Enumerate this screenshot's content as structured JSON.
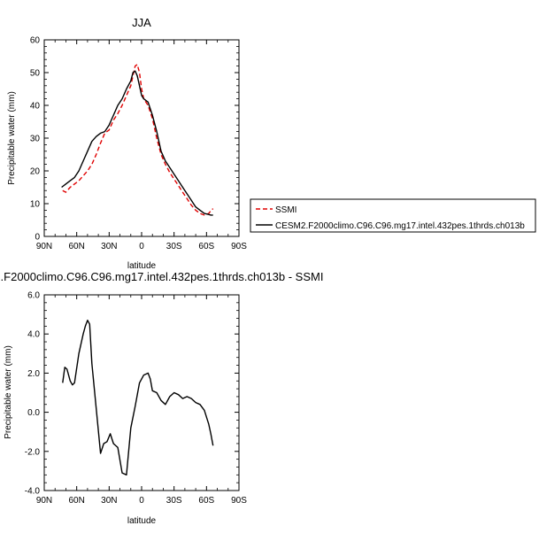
{
  "chart_data": [
    {
      "type": "line",
      "title": "JJA",
      "xlabel": "latitude",
      "ylabel": "Precipitable water (mm)",
      "xlim": [
        90,
        -90
      ],
      "ylim": [
        0,
        60
      ],
      "x_ticks": [
        90,
        60,
        30,
        0,
        -30,
        -60,
        -90
      ],
      "x_tick_labels": [
        "90N",
        "60N",
        "30N",
        "0",
        "30S",
        "60S",
        "90S"
      ],
      "y_ticks": [
        0,
        10,
        20,
        30,
        40,
        50,
        60
      ],
      "y_tick_labels": [
        "0",
        "10",
        "20",
        "30",
        "40",
        "50",
        "60"
      ],
      "legend_position": "right",
      "series": [
        {
          "name": "SSMI",
          "color": "#e00000",
          "dash": "dashed",
          "x": [
            73,
            70,
            66,
            62,
            58,
            54,
            50,
            46,
            42,
            38,
            34,
            30,
            26,
            22,
            18,
            14,
            10,
            8,
            6,
            4,
            2,
            0,
            -2,
            -6,
            -10,
            -14,
            -18,
            -22,
            -26,
            -30,
            -34,
            -38,
            -42,
            -46,
            -50,
            -54,
            -58,
            -62,
            -64,
            -66
          ],
          "y": [
            14,
            13.5,
            15,
            16,
            17,
            18.5,
            20,
            22,
            25,
            28.5,
            31.5,
            32.5,
            35.5,
            37.5,
            40,
            43,
            46,
            49,
            52,
            52.5,
            50,
            45,
            42,
            40,
            36,
            30,
            25,
            22,
            19.5,
            17.5,
            15.5,
            13.5,
            11.5,
            9.5,
            8,
            7,
            6.5,
            7,
            7.8,
            8.5
          ]
        },
        {
          "name": "CESM2.F2000climo.C96.C96.mg17.intel.432pes.1thrds.ch013b",
          "color": "#000000",
          "dash": "solid",
          "x": [
            74,
            70,
            66,
            62,
            58,
            54,
            50,
            46,
            42,
            38,
            34,
            30,
            26,
            22,
            18,
            14,
            10,
            8,
            6,
            4,
            2,
            0,
            -2,
            -6,
            -10,
            -14,
            -18,
            -22,
            -26,
            -30,
            -34,
            -38,
            -42,
            -46,
            -50,
            -54,
            -58,
            -62,
            -64,
            -66
          ],
          "y": [
            15,
            16,
            17,
            18,
            20,
            23,
            26,
            29,
            30.5,
            31.5,
            32,
            34,
            37,
            40,
            42,
            45,
            47.5,
            50,
            50.5,
            49,
            46,
            43,
            42,
            41,
            37,
            32,
            26,
            23,
            21,
            19,
            17,
            15,
            13,
            11,
            9,
            8,
            7,
            6.7,
            6.5,
            6.5
          ]
        }
      ]
    },
    {
      "type": "line",
      "title": ".F2000climo.C96.C96.mg17.intel.432pes.1thrds.ch013b - SSMI",
      "xlabel": "latitude",
      "ylabel": "Precipitable water (mm)",
      "xlim": [
        90,
        -90
      ],
      "ylim": [
        -4,
        6
      ],
      "x_ticks": [
        90,
        60,
        30,
        0,
        -30,
        -60,
        -90
      ],
      "x_tick_labels": [
        "90N",
        "60N",
        "30N",
        "0",
        "30S",
        "60S",
        "90S"
      ],
      "y_ticks": [
        -4,
        -2,
        0,
        2,
        4,
        6
      ],
      "y_tick_labels": [
        "-4.0",
        "-2.0",
        "0.0",
        "2.0",
        "4.0",
        "6.0"
      ],
      "series": [
        {
          "color": "#000000",
          "dash": "solid",
          "x": [
            73,
            71,
            69,
            66,
            64,
            62,
            58,
            54,
            52,
            50,
            48,
            46,
            42,
            38,
            35,
            32,
            29,
            26,
            22,
            18,
            14,
            10,
            6,
            2,
            -2,
            -6,
            -8,
            -10,
            -14,
            -18,
            -22,
            -26,
            -30,
            -34,
            -38,
            -42,
            -46,
            -50,
            -54,
            -58,
            -62,
            -64,
            -66
          ],
          "y": [
            1.5,
            2.3,
            2.2,
            1.6,
            1.4,
            1.5,
            3.0,
            4.0,
            4.4,
            4.7,
            4.5,
            2.5,
            0.2,
            -2.1,
            -1.6,
            -1.5,
            -1.1,
            -1.6,
            -1.8,
            -3.1,
            -3.2,
            -0.8,
            0.3,
            1.5,
            1.9,
            2.0,
            1.7,
            1.1,
            1.0,
            0.6,
            0.4,
            0.8,
            1.0,
            0.9,
            0.7,
            0.8,
            0.7,
            0.5,
            0.4,
            0.1,
            -0.6,
            -1.1,
            -1.7
          ]
        }
      ]
    }
  ]
}
